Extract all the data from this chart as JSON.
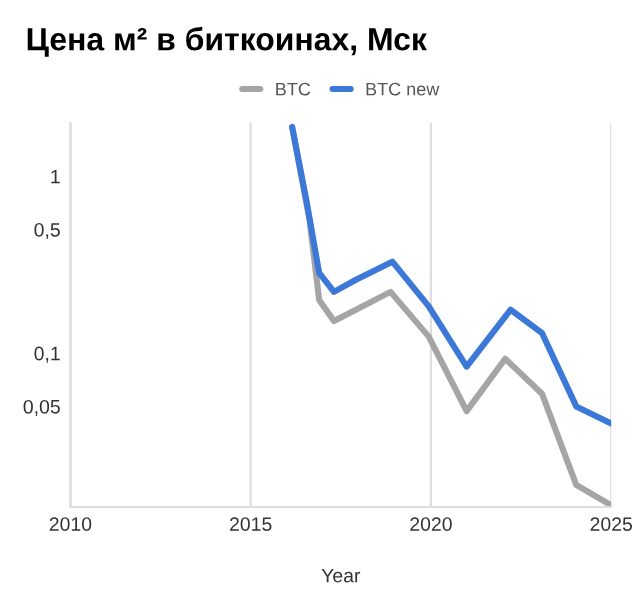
{
  "chart_data": {
    "type": "line",
    "title": "Цена м² в биткоинах, Мск",
    "xlabel": "Year",
    "series": [
      {
        "name": "BTC",
        "color": "#a5a5a5",
        "x": [
          2016.15,
          2016.63,
          2016.9,
          2017.31,
          2017.92,
          2018.88,
          2019.94,
          2020.99,
          2022.06,
          2023.08,
          2024.03,
          2025.0
        ],
        "values": [
          1.9,
          0.57,
          0.2,
          0.152,
          0.176,
          0.222,
          0.124,
          0.047,
          0.093,
          0.059,
          0.018,
          0.0138
        ]
      },
      {
        "name": "BTC new",
        "color": "#3c78d8",
        "x": [
          2016.15,
          2016.54,
          2016.9,
          2017.31,
          2017.92,
          2018.93,
          2019.94,
          2020.99,
          2022.21,
          2023.08,
          2024.03,
          2025.0
        ],
        "values": [
          1.9,
          0.74,
          0.284,
          0.222,
          0.26,
          0.329,
          0.184,
          0.084,
          0.176,
          0.13,
          0.05,
          0.04
        ]
      }
    ],
    "log": "y",
    "xlim": [
      2010,
      2025
    ],
    "xticks": [
      2010,
      2015,
      2020,
      2025
    ],
    "ylim": [
      0.0135,
      2
    ],
    "yticks": [
      {
        "value": 1,
        "label": "1"
      },
      {
        "value": 0.5,
        "label": "0,5"
      },
      {
        "value": 0.1,
        "label": "0,1"
      },
      {
        "value": 0.05,
        "label": "0,05"
      }
    ],
    "grid": "x",
    "legend": "top",
    "marker": "none",
    "line_style": "solid"
  }
}
